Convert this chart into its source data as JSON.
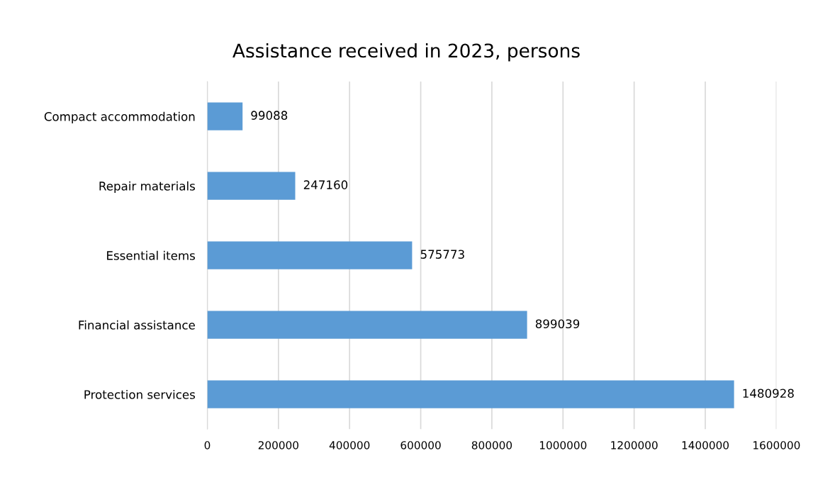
{
  "chart_data": {
    "type": "bar",
    "orientation": "horizontal",
    "title": "Assistance received in 2023, persons",
    "categories": [
      "Compact accommodation",
      "Repair materials",
      "Essential items",
      "Financial assistance",
      "Protection services"
    ],
    "values": [
      99088,
      247160,
      575773,
      899039,
      1480928
    ],
    "color": "#5b9bd5",
    "xlim": [
      0,
      1600000
    ],
    "xticks": [
      0,
      200000,
      400000,
      600000,
      800000,
      1000000,
      1200000,
      1400000,
      1600000
    ],
    "grid": "x",
    "data_labels": true,
    "legend": false
  }
}
